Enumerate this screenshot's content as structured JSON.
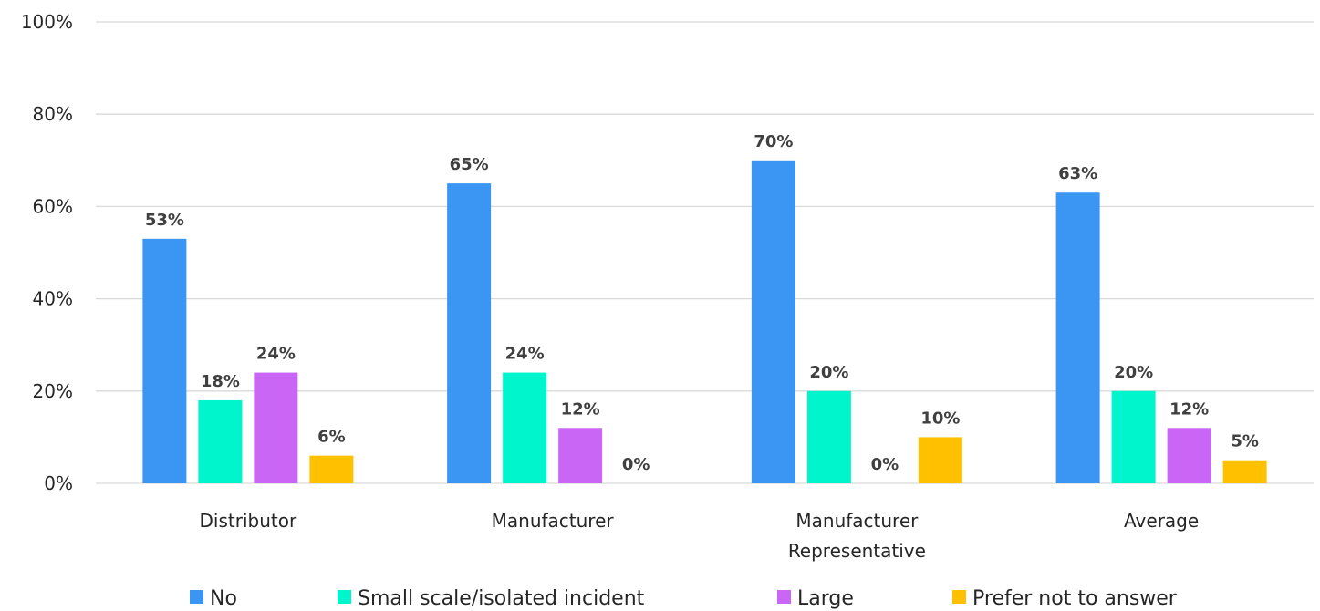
{
  "chart_data": {
    "type": "bar",
    "categories": [
      [
        "Distributor"
      ],
      [
        "Manufacturer"
      ],
      [
        "Manufacturer",
        "Representative"
      ],
      [
        "Average"
      ]
    ],
    "series": [
      {
        "name": "No",
        "color": "#3a96f2",
        "values": [
          53,
          65,
          70,
          63
        ],
        "labels": [
          "53%",
          "65%",
          "70%",
          "63%"
        ]
      },
      {
        "name": "Small scale/isolated incident",
        "color": "#00f5cc",
        "values": [
          18,
          24,
          20,
          20
        ],
        "labels": [
          "18%",
          "24%",
          "20%",
          "20%"
        ]
      },
      {
        "name": "Large",
        "color": "#c966f5",
        "values": [
          24,
          12,
          0,
          12
        ],
        "labels": [
          "24%",
          "12%",
          "0%",
          "12%"
        ]
      },
      {
        "name": "Prefer not to answer",
        "color": "#ffc000",
        "values": [
          6,
          0,
          10,
          5
        ],
        "labels": [
          "6%",
          "0%",
          "10%",
          "5%"
        ]
      }
    ],
    "ylim": [
      0,
      100
    ],
    "yticks": [
      0,
      20,
      40,
      60,
      80,
      100
    ],
    "ytick_labels": [
      "0%",
      "20%",
      "40%",
      "60%",
      "80%",
      "100%"
    ],
    "grid": true,
    "legend": "bottom",
    "title": "",
    "xlabel": "",
    "ylabel": ""
  }
}
